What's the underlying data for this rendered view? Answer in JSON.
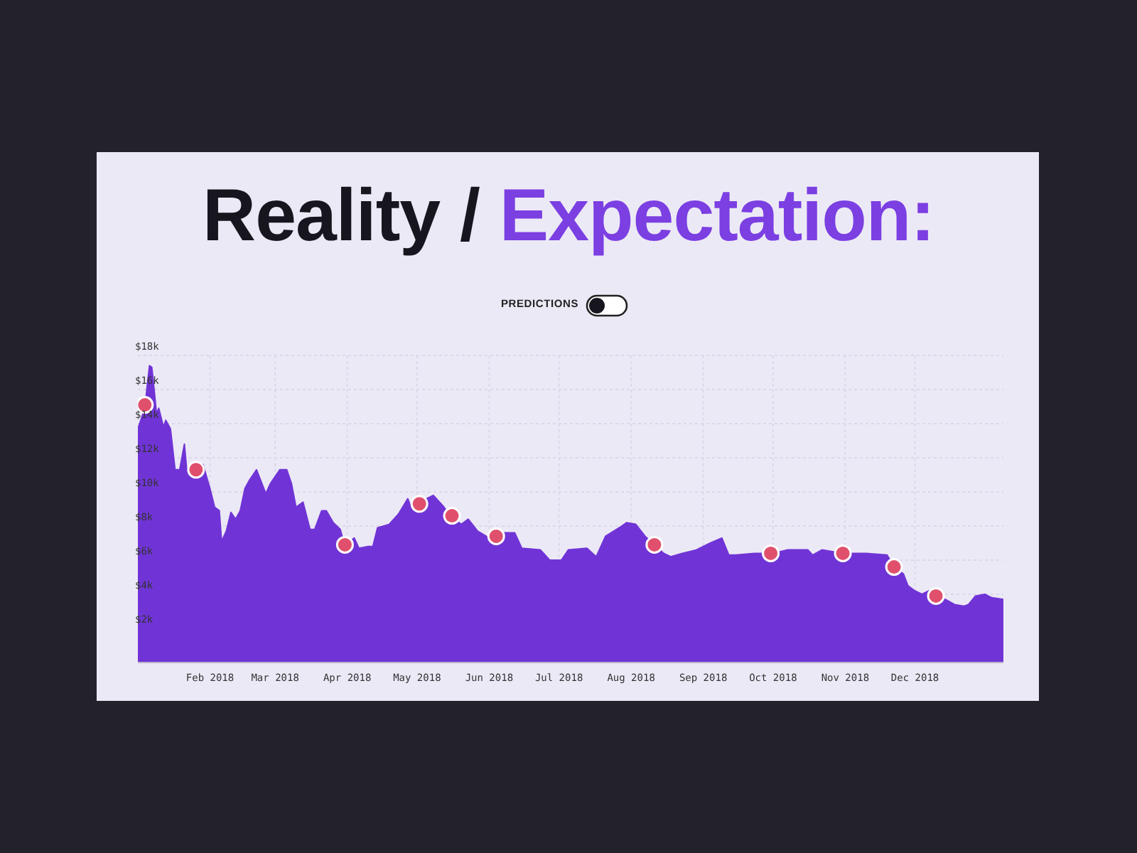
{
  "chart_data": {
    "type": "area",
    "title": "Reality / Expectation:",
    "annotations": [
      "PREDICTIONS"
    ],
    "xlim": [
      "2018-01-01",
      "2019-01-08"
    ],
    "xticks": [
      {
        "value": "2018-02-01",
        "label": "Feb 2018"
      },
      {
        "value": "2018-03-01",
        "label": "Mar 2018"
      },
      {
        "value": "2018-04-01",
        "label": "Apr 2018"
      },
      {
        "value": "2018-05-01",
        "label": "May 2018"
      },
      {
        "value": "2018-06-01",
        "label": "Jun 2018"
      },
      {
        "value": "2018-07-01",
        "label": "Jul 2018"
      },
      {
        "value": "2018-08-01",
        "label": "Aug 2018"
      },
      {
        "value": "2018-09-01",
        "label": "Sep 2018"
      },
      {
        "value": "2018-10-01",
        "label": "Oct 2018"
      },
      {
        "value": "2018-11-01",
        "label": "Nov 2018"
      },
      {
        "value": "2018-12-01",
        "label": "Dec 2018"
      }
    ],
    "ylim": [
      0,
      18000
    ],
    "yticks": [
      {
        "value": 2000,
        "label": "$2k"
      },
      {
        "value": 4000,
        "label": "$4k"
      },
      {
        "value": 6000,
        "label": "$6k"
      },
      {
        "value": 8000,
        "label": "$8k"
      },
      {
        "value": 10000,
        "label": "$10k"
      },
      {
        "value": 12000,
        "label": "$12k"
      },
      {
        "value": 14000,
        "label": "$14k"
      },
      {
        "value": 16000,
        "label": "$16k"
      },
      {
        "value": 18000,
        "label": "$18k"
      }
    ],
    "grid": true,
    "series": [
      {
        "color": "#7034d6",
        "x": [
          "2018-01-01",
          "2018-01-02",
          "2018-01-04",
          "2018-01-05",
          "2018-01-06",
          "2018-01-07",
          "2018-01-08",
          "2018-01-09",
          "2018-01-10",
          "2018-01-12",
          "2018-01-13",
          "2018-01-15",
          "2018-01-17",
          "2018-01-19",
          "2018-01-21",
          "2018-01-22",
          "2018-01-25",
          "2018-01-29",
          "2018-02-01",
          "2018-02-03",
          "2018-02-05",
          "2018-02-06",
          "2018-02-08",
          "2018-02-10",
          "2018-02-12",
          "2018-02-14",
          "2018-02-16",
          "2018-02-18",
          "2018-02-21",
          "2018-02-23",
          "2018-02-25",
          "2018-02-27",
          "2018-03-03",
          "2018-03-06",
          "2018-03-08",
          "2018-03-10",
          "2018-03-13",
          "2018-03-16",
          "2018-03-18",
          "2018-03-21",
          "2018-03-23",
          "2018-03-26",
          "2018-03-29",
          "2018-03-31",
          "2018-04-04",
          "2018-04-06",
          "2018-04-10",
          "2018-04-12",
          "2018-04-14",
          "2018-04-19",
          "2018-04-23",
          "2018-04-27",
          "2018-04-29",
          "2018-05-05",
          "2018-05-08",
          "2018-05-12",
          "2018-05-16",
          "2018-05-20",
          "2018-05-23",
          "2018-05-27",
          "2018-06-01",
          "2018-06-07",
          "2018-06-12",
          "2018-06-15",
          "2018-06-23",
          "2018-06-27",
          "2018-07-02",
          "2018-07-05",
          "2018-07-13",
          "2018-07-17",
          "2018-07-21",
          "2018-07-28",
          "2018-07-30",
          "2018-08-03",
          "2018-08-07",
          "2018-08-11",
          "2018-08-15",
          "2018-08-18",
          "2018-08-23",
          "2018-08-29",
          "2018-09-04",
          "2018-09-09",
          "2018-09-12",
          "2018-09-15",
          "2018-09-23",
          "2018-10-01",
          "2018-10-07",
          "2018-10-16",
          "2018-10-18",
          "2018-10-22",
          "2018-10-31",
          "2018-11-10",
          "2018-11-19",
          "2018-11-22",
          "2018-11-26",
          "2018-11-28",
          "2018-12-01",
          "2018-12-04",
          "2018-12-07",
          "2018-12-10",
          "2018-12-14",
          "2018-12-18",
          "2018-12-22",
          "2018-12-24",
          "2018-12-27",
          "2018-12-31",
          "2019-01-03",
          "2019-01-08"
        ],
        "values": [
          13700,
          14100,
          14900,
          16200,
          17400,
          17300,
          16000,
          14600,
          14900,
          13800,
          14200,
          13700,
          11300,
          11300,
          12800,
          11300,
          11600,
          11600,
          10200,
          9100,
          8900,
          7100,
          7700,
          8800,
          8400,
          8900,
          10200,
          10700,
          11300,
          10600,
          9900,
          10500,
          11300,
          11300,
          10500,
          9100,
          9400,
          7800,
          7800,
          8900,
          8900,
          8200,
          7800,
          6800,
          7300,
          6700,
          6800,
          6800,
          7900,
          8100,
          8700,
          9600,
          8900,
          9600,
          9800,
          9200,
          8500,
          8100,
          8400,
          7700,
          7300,
          7600,
          7600,
          6700,
          6600,
          6000,
          6000,
          6600,
          6700,
          6200,
          7400,
          8000,
          8200,
          8100,
          7400,
          6900,
          6400,
          6200,
          6400,
          6600,
          7000,
          7300,
          6300,
          6300,
          6400,
          6400,
          6600,
          6600,
          6300,
          6600,
          6400,
          6400,
          6300,
          5600,
          5200,
          4500,
          4200,
          4000,
          4200,
          3800,
          3700,
          3400,
          3300,
          3400,
          3900,
          4000,
          3800,
          3700
        ]
      },
      {
        "type": "scatter",
        "color": "#e0506c",
        "marker": "circle",
        "x": [
          "2018-01-04",
          "2018-01-26",
          "2018-03-31",
          "2018-05-02",
          "2018-05-16",
          "2018-06-04",
          "2018-08-11",
          "2018-09-30",
          "2018-10-31",
          "2018-11-22",
          "2018-12-10"
        ],
        "values": [
          15100,
          11300,
          6900,
          9300,
          8600,
          7400,
          6900,
          6400,
          6400,
          5600,
          3900
        ]
      }
    ]
  }
}
